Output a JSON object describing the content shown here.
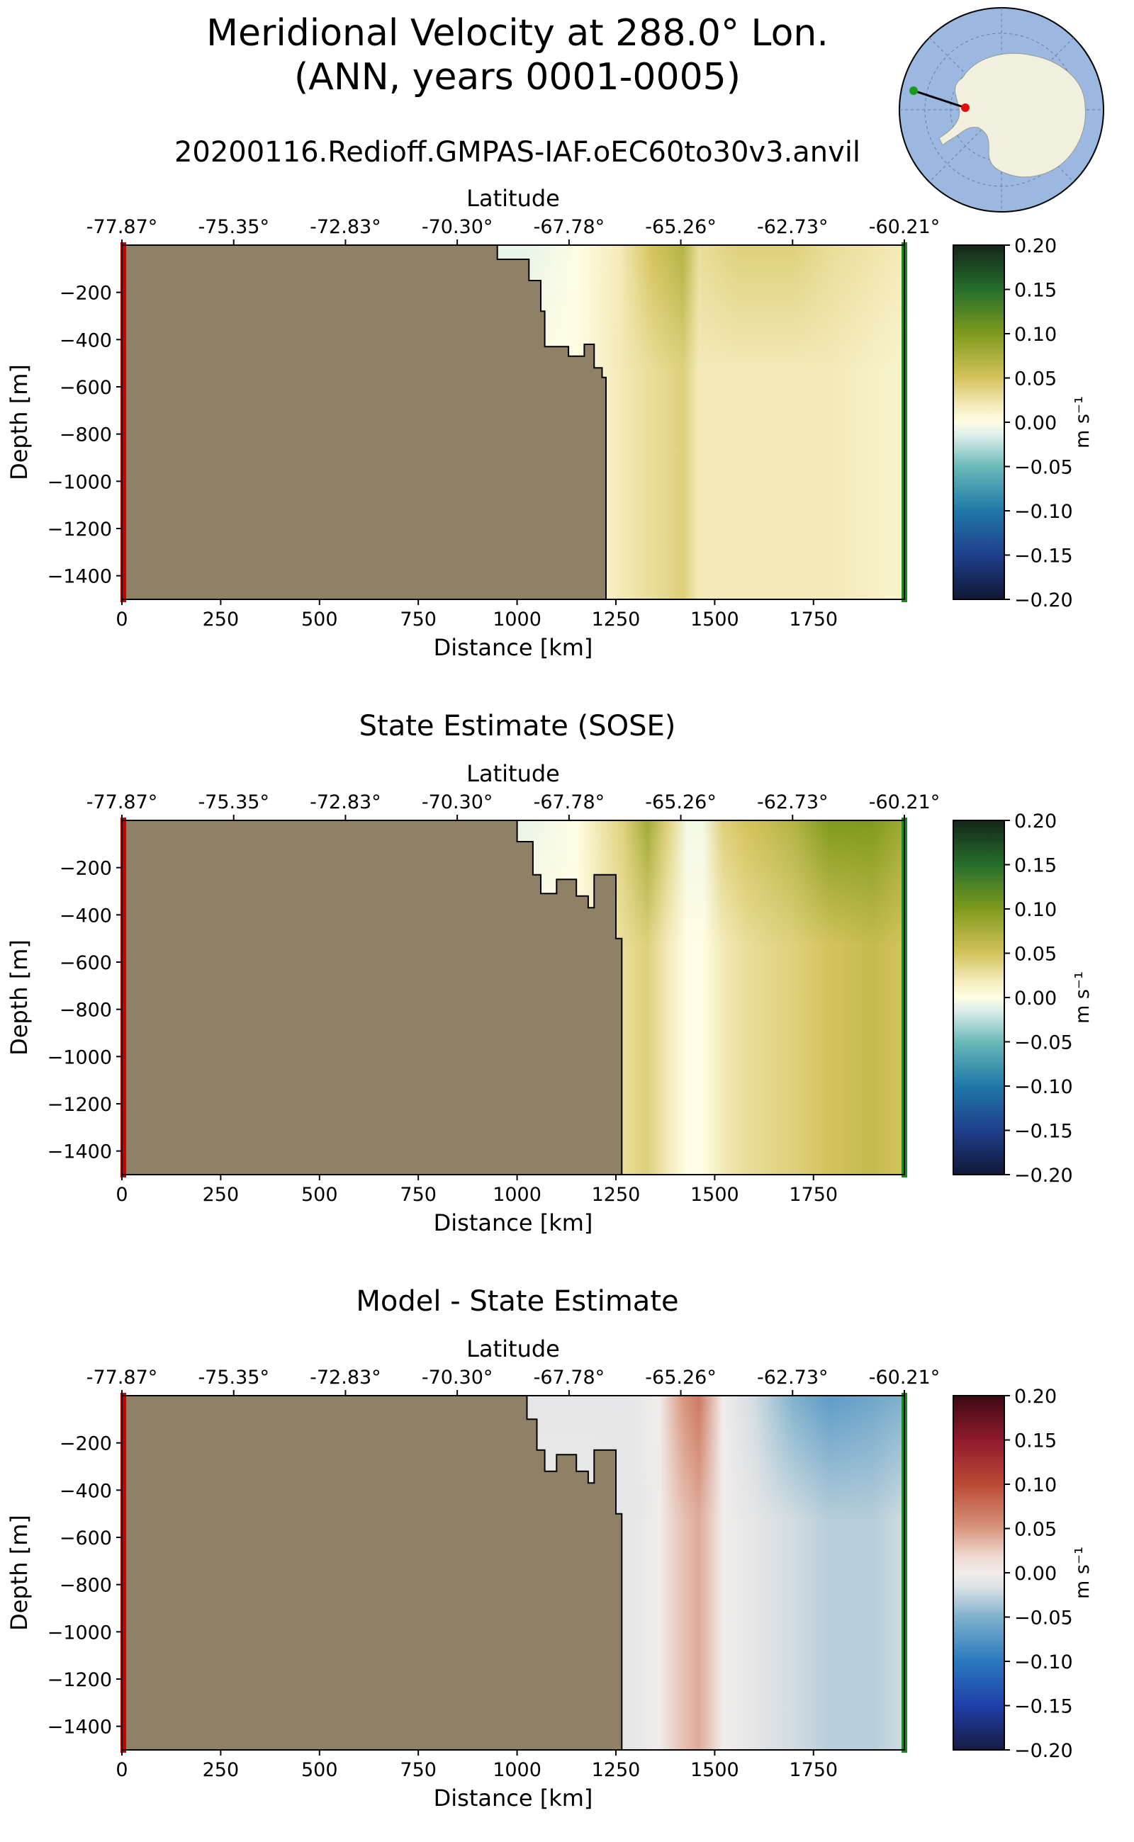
{
  "figure": {
    "title_line1": "Meridional Velocity at 288.0° Lon.",
    "title_line2": "(ANN, years 0001-0005)",
    "subtitle": "20200116.Redioff.GMPAS-IAF.oEC60to30v3.anvil"
  },
  "colors": {
    "land": "#8f8166",
    "start_marker": "#cc0000",
    "end_marker": "#1a8a1a",
    "globe_ocean": "#9ab8e0",
    "globe_land": "#f1efdd"
  },
  "chart_data": [
    {
      "type": "heatmap",
      "title": "",
      "xlabel": "Distance [km]",
      "ylabel": "Depth [m]",
      "top_xlabel": "Latitude",
      "xlim": [
        0,
        1980
      ],
      "ylim": [
        -1500,
        0
      ],
      "xticks": [
        0,
        250,
        500,
        750,
        1000,
        1250,
        1500,
        1750
      ],
      "yticks": [
        -200,
        -400,
        -600,
        -800,
        -1000,
        -1200,
        -1400
      ],
      "lat_ticks": [
        "-77.87°",
        "-75.35°",
        "-72.83°",
        "-70.30°",
        "-67.78°",
        "-65.26°",
        "-62.73°",
        "-60.21°"
      ],
      "colorbar": {
        "label": "m s⁻¹",
        "min": -0.2,
        "max": 0.2,
        "ticks": [
          "0.20",
          "0.15",
          "0.10",
          "0.05",
          "0.00",
          "−0.05",
          "−0.10",
          "−0.15",
          "−0.20"
        ],
        "cmap": "delta"
      },
      "bathymetry": [
        [
          0,
          0
        ],
        [
          950,
          0
        ],
        [
          950,
          -60
        ],
        [
          1030,
          -60
        ],
        [
          1030,
          -150
        ],
        [
          1060,
          -150
        ],
        [
          1060,
          -280
        ],
        [
          1070,
          -280
        ],
        [
          1070,
          -430
        ],
        [
          1130,
          -430
        ],
        [
          1130,
          -470
        ],
        [
          1170,
          -470
        ],
        [
          1170,
          -420
        ],
        [
          1195,
          -420
        ],
        [
          1195,
          -520
        ],
        [
          1215,
          -520
        ],
        [
          1215,
          -560
        ],
        [
          1225,
          -560
        ],
        [
          1225,
          -1500
        ]
      ],
      "velocity_profile": {
        "distance_km": [
          1030,
          1150,
          1260,
          1340,
          1420,
          1460,
          1560,
          1700,
          1800,
          1980
        ],
        "surface": [
          -0.01,
          0.0,
          0.02,
          0.05,
          0.07,
          0.03,
          0.04,
          0.04,
          0.03,
          0.02
        ],
        "deep": [
          0.0,
          0.0,
          0.02,
          0.03,
          0.04,
          0.02,
          0.02,
          0.02,
          0.02,
          0.01
        ]
      }
    },
    {
      "type": "heatmap",
      "title": "State Estimate (SOSE)",
      "xlabel": "Distance [km]",
      "ylabel": "Depth [m]",
      "top_xlabel": "Latitude",
      "xlim": [
        0,
        1980
      ],
      "ylim": [
        -1500,
        0
      ],
      "xticks": [
        0,
        250,
        500,
        750,
        1000,
        1250,
        1500,
        1750
      ],
      "yticks": [
        -200,
        -400,
        -600,
        -800,
        -1000,
        -1200,
        -1400
      ],
      "lat_ticks": [
        "-77.87°",
        "-75.35°",
        "-72.83°",
        "-70.30°",
        "-67.78°",
        "-65.26°",
        "-62.73°",
        "-60.21°"
      ],
      "colorbar": {
        "label": "m s⁻¹",
        "min": -0.2,
        "max": 0.2,
        "ticks": [
          "0.20",
          "0.15",
          "0.10",
          "0.05",
          "0.00",
          "−0.05",
          "−0.10",
          "−0.15",
          "−0.20"
        ],
        "cmap": "delta"
      },
      "bathymetry": [
        [
          0,
          0
        ],
        [
          1000,
          0
        ],
        [
          1000,
          -90
        ],
        [
          1040,
          -90
        ],
        [
          1040,
          -230
        ],
        [
          1060,
          -230
        ],
        [
          1060,
          -310
        ],
        [
          1100,
          -310
        ],
        [
          1100,
          -250
        ],
        [
          1150,
          -250
        ],
        [
          1150,
          -320
        ],
        [
          1180,
          -320
        ],
        [
          1180,
          -370
        ],
        [
          1195,
          -370
        ],
        [
          1195,
          -230
        ],
        [
          1250,
          -230
        ],
        [
          1250,
          -500
        ],
        [
          1265,
          -500
        ],
        [
          1265,
          -1500
        ]
      ],
      "velocity_profile": {
        "distance_km": [
          1000,
          1150,
          1270,
          1330,
          1380,
          1430,
          1470,
          1520,
          1580,
          1700,
          1790,
          1900,
          1980
        ],
        "surface": [
          -0.01,
          0.0,
          0.04,
          0.08,
          0.04,
          -0.005,
          -0.005,
          0.04,
          0.05,
          0.07,
          0.1,
          0.1,
          0.08
        ],
        "deep": [
          0.0,
          0.0,
          0.03,
          0.04,
          0.02,
          0.0,
          0.0,
          0.02,
          0.03,
          0.04,
          0.05,
          0.06,
          0.05
        ]
      }
    },
    {
      "type": "heatmap",
      "title": "Model - State Estimate",
      "xlabel": "Distance [km]",
      "ylabel": "Depth [m]",
      "top_xlabel": "Latitude",
      "xlim": [
        0,
        1980
      ],
      "ylim": [
        -1500,
        0
      ],
      "xticks": [
        0,
        250,
        500,
        750,
        1000,
        1250,
        1500,
        1750
      ],
      "yticks": [
        -200,
        -400,
        -600,
        -800,
        -1000,
        -1200,
        -1400
      ],
      "lat_ticks": [
        "-77.87°",
        "-75.35°",
        "-72.83°",
        "-70.30°",
        "-67.78°",
        "-65.26°",
        "-62.73°",
        "-60.21°"
      ],
      "colorbar": {
        "label": "m s⁻¹",
        "min": -0.2,
        "max": 0.2,
        "ticks": [
          "0.20",
          "0.15",
          "0.10",
          "0.05",
          "0.00",
          "−0.05",
          "−0.10",
          "−0.15",
          "−0.20"
        ],
        "cmap": "balance"
      },
      "bathymetry": [
        [
          0,
          0
        ],
        [
          1025,
          0
        ],
        [
          1025,
          -100
        ],
        [
          1050,
          -100
        ],
        [
          1050,
          -230
        ],
        [
          1070,
          -230
        ],
        [
          1070,
          -320
        ],
        [
          1100,
          -320
        ],
        [
          1100,
          -250
        ],
        [
          1150,
          -250
        ],
        [
          1150,
          -320
        ],
        [
          1180,
          -320
        ],
        [
          1180,
          -370
        ],
        [
          1195,
          -370
        ],
        [
          1195,
          -230
        ],
        [
          1250,
          -230
        ],
        [
          1250,
          -500
        ],
        [
          1265,
          -500
        ],
        [
          1265,
          -1500
        ]
      ],
      "velocity_profile": {
        "distance_km": [
          1030,
          1200,
          1290,
          1360,
          1420,
          1460,
          1520,
          1600,
          1700,
          1790,
          1900,
          1980
        ],
        "surface": [
          -0.01,
          -0.01,
          -0.01,
          0.0,
          0.05,
          0.07,
          0.0,
          -0.02,
          -0.05,
          -0.07,
          -0.06,
          -0.05
        ],
        "deep": [
          -0.005,
          -0.005,
          -0.01,
          0.0,
          0.03,
          0.04,
          0.0,
          -0.01,
          -0.02,
          -0.03,
          -0.03,
          -0.02
        ]
      }
    }
  ]
}
